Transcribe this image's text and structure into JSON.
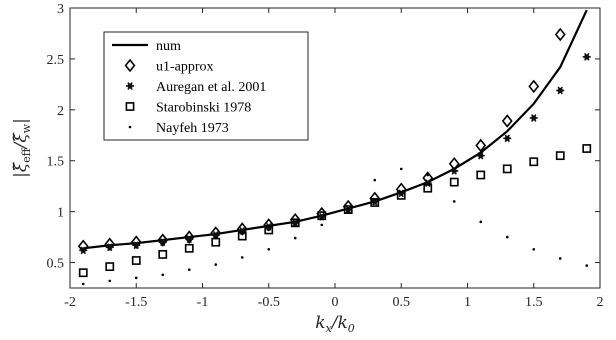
{
  "chart_data": {
    "type": "line",
    "xlabel": "kx/k0",
    "ylabel": "|ξ̃eff/ξ̃w|",
    "xlim": [
      -2,
      2
    ],
    "ylim": [
      0.25,
      3
    ],
    "xticks": [
      -2,
      -1.5,
      -1,
      -0.5,
      0,
      0.5,
      1,
      1.5,
      2
    ],
    "yticks": [
      0.5,
      1,
      1.5,
      2,
      2.5,
      3
    ],
    "xtick_labels": [
      "-2",
      "-1.5",
      "-1",
      "-0.5",
      "0",
      "0.5",
      "1",
      "1.5",
      "2"
    ],
    "ytick_labels": [
      "0.5",
      "1",
      "1.5",
      "2",
      "2.5",
      "3"
    ],
    "grid": false,
    "legend_position": "top-left",
    "series": [
      {
        "name": "num",
        "style": "line",
        "x": [
          -1.9,
          -1.7,
          -1.5,
          -1.3,
          -1.1,
          -0.9,
          -0.7,
          -0.5,
          -0.3,
          -0.1,
          0.1,
          0.3,
          0.5,
          0.7,
          0.9,
          1.1,
          1.3,
          1.5,
          1.7,
          1.9
        ],
        "y": [
          0.64,
          0.67,
          0.69,
          0.72,
          0.75,
          0.78,
          0.82,
          0.86,
          0.9,
          0.96,
          1.03,
          1.1,
          1.19,
          1.29,
          1.42,
          1.58,
          1.79,
          2.06,
          2.42,
          2.98
        ]
      },
      {
        "name": "u1-approx",
        "style": "diamond",
        "x": [
          -1.9,
          -1.7,
          -1.5,
          -1.3,
          -1.1,
          -0.9,
          -0.7,
          -0.5,
          -0.3,
          -0.1,
          0.1,
          0.3,
          0.5,
          0.7,
          0.9,
          1.1,
          1.3,
          1.5,
          1.7
        ],
        "y": [
          0.66,
          0.68,
          0.7,
          0.72,
          0.75,
          0.79,
          0.83,
          0.87,
          0.92,
          0.98,
          1.05,
          1.13,
          1.22,
          1.33,
          1.47,
          1.65,
          1.89,
          2.23,
          2.74
        ]
      },
      {
        "name": "Auregan et al. 2001",
        "style": "asterisk",
        "x": [
          -1.9,
          -1.7,
          -1.5,
          -1.3,
          -1.1,
          -0.9,
          -0.7,
          -0.5,
          -0.3,
          -0.1,
          0.1,
          0.3,
          0.5,
          0.7,
          0.9,
          1.1,
          1.3,
          1.5,
          1.7,
          1.9
        ],
        "y": [
          0.62,
          0.65,
          0.67,
          0.7,
          0.73,
          0.77,
          0.81,
          0.85,
          0.89,
          0.95,
          1.02,
          1.1,
          1.18,
          1.28,
          1.4,
          1.55,
          1.72,
          1.92,
          2.19,
          2.52
        ]
      },
      {
        "name": "Starobinski 1978",
        "style": "square",
        "x": [
          -1.9,
          -1.7,
          -1.5,
          -1.3,
          -1.1,
          -0.9,
          -0.7,
          -0.5,
          -0.3,
          -0.1,
          0.1,
          0.3,
          0.5,
          0.7,
          0.9,
          1.1,
          1.3,
          1.5,
          1.7,
          1.9
        ],
        "y": [
          0.4,
          0.46,
          0.52,
          0.58,
          0.64,
          0.7,
          0.76,
          0.82,
          0.89,
          0.96,
          1.02,
          1.09,
          1.16,
          1.23,
          1.29,
          1.36,
          1.42,
          1.49,
          1.55,
          1.62
        ]
      },
      {
        "name": "Nayfeh 1973",
        "style": "dot",
        "x": [
          -1.9,
          -1.7,
          -1.5,
          -1.3,
          -1.1,
          -0.9,
          -0.7,
          -0.5,
          -0.3,
          -0.1,
          0.1,
          0.3,
          0.5,
          0.7,
          0.9,
          1.1,
          1.3,
          1.5,
          1.7,
          1.9
        ],
        "y": [
          0.29,
          0.32,
          0.35,
          0.38,
          0.43,
          0.48,
          0.55,
          0.63,
          0.74,
          0.87,
          1.03,
          1.31,
          1.42,
          1.36,
          1.1,
          0.9,
          0.75,
          0.63,
          0.54,
          0.47
        ]
      }
    ]
  }
}
